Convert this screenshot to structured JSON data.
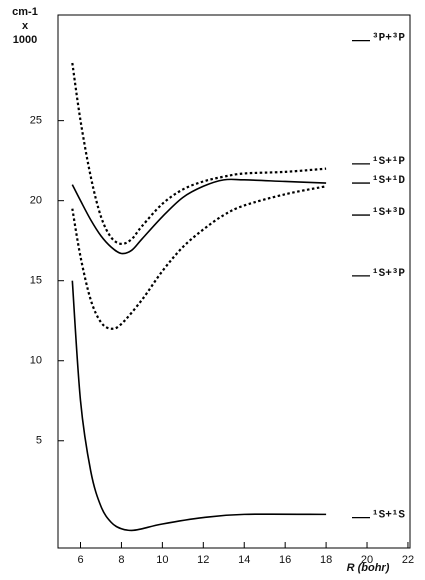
{
  "chart_data": {
    "type": "line",
    "ylabel": [
      "cm-1",
      "x",
      "1000"
    ],
    "xlabel": "R (bohr)",
    "xlim": [
      4.9,
      22.1
    ],
    "ylim": [
      -1.7,
      31.6
    ],
    "xticks": [
      6,
      8,
      10,
      12,
      14,
      16,
      18,
      20,
      22
    ],
    "yticks": [
      5,
      10,
      15,
      20,
      25
    ],
    "series": [
      {
        "color": "#000000",
        "style": "dotted",
        "x": [
          5.6,
          6,
          6.5,
          7,
          7.5,
          8,
          8.5,
          9,
          10,
          11,
          12,
          13,
          14,
          16,
          18
        ],
        "values": [
          28.6,
          25.0,
          21.5,
          19.0,
          17.7,
          17.3,
          17.6,
          18.4,
          19.8,
          20.7,
          21.2,
          21.5,
          21.7,
          21.8,
          22.0
        ]
      },
      {
        "color": "#000000",
        "style": "solid",
        "x": [
          5.6,
          6,
          6.5,
          7,
          7.5,
          8,
          8.5,
          9,
          10,
          11,
          12,
          13,
          14,
          16,
          18
        ],
        "values": [
          21.0,
          20.0,
          18.8,
          17.8,
          17.1,
          16.7,
          16.9,
          17.6,
          19.0,
          20.2,
          20.9,
          21.3,
          21.3,
          21.2,
          21.1
        ]
      },
      {
        "color": "#000000",
        "style": "dotted",
        "x": [
          5.6,
          6,
          6.5,
          7,
          7.5,
          8,
          9,
          10,
          11,
          12,
          13,
          14,
          16,
          18
        ],
        "values": [
          19.5,
          16.5,
          13.8,
          12.4,
          12.0,
          12.3,
          13.8,
          15.6,
          17.1,
          18.2,
          19.1,
          19.7,
          20.4,
          20.9
        ]
      },
      {
        "color": "#000000",
        "style": "solid",
        "x": [
          5.6,
          6,
          6.5,
          7,
          7.5,
          8,
          8.5,
          9,
          10,
          12,
          14,
          18
        ],
        "values": [
          15.0,
          7.5,
          3.1,
          0.9,
          -0.1,
          -0.5,
          -0.6,
          -0.5,
          -0.2,
          0.2,
          0.4,
          0.4
        ]
      }
    ],
    "annotations": [
      {
        "text": "³P+³P",
        "y": 30.0
      },
      {
        "text": "¹S+¹P",
        "y": 22.3
      },
      {
        "text": "¹S+¹D",
        "y": 21.1
      },
      {
        "text": "¹S+³D",
        "y": 19.1
      },
      {
        "text": "¹S+³P",
        "y": 15.3
      },
      {
        "text": "¹S+¹S",
        "y": 0.2
      }
    ]
  }
}
